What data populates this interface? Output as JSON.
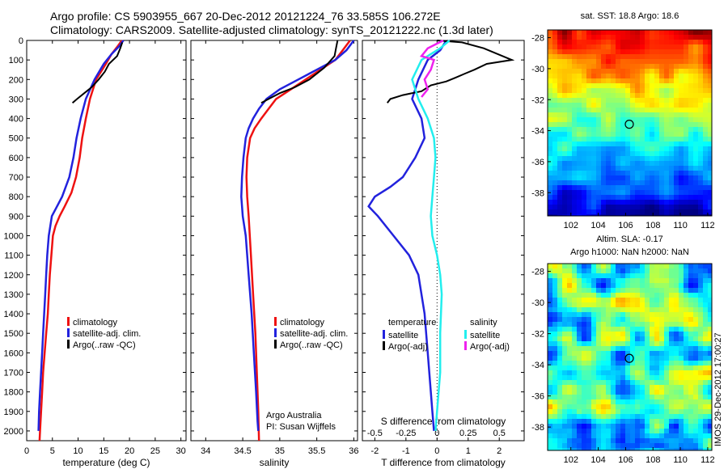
{
  "header": {
    "line1": "Argo profile: CS 5903955_667 20-Dec-2012 20121224_76 33.585S 106.272E",
    "line2": "Climatology: CARS2009. Satellite-adjusted climatology: synTS_20121222.nc (1.3d later)"
  },
  "side_stamp": "IMOS 29-Dec-2012 17:00:27",
  "colors": {
    "climatology": "#ee1111",
    "satellite": "#2222dd",
    "argo": "#000000",
    "sal_satellite": "#22eeee",
    "sal_argo": "#ee22ee"
  },
  "chart_data": [
    {
      "id": "temperature",
      "type": "line",
      "xlabel": "temperature (deg C)",
      "ylabel": "",
      "xlim": [
        0,
        31
      ],
      "ylim": [
        2050,
        0
      ],
      "xticks": [
        0,
        5,
        10,
        15,
        20,
        25,
        30
      ],
      "yticks": [
        0,
        100,
        200,
        300,
        400,
        500,
        600,
        700,
        800,
        900,
        1000,
        1100,
        1200,
        1300,
        1400,
        1500,
        1600,
        1700,
        1800,
        1900,
        2000
      ],
      "legend": [
        "climatology",
        "satellite-adj. clim.",
        "Argo(..raw -QC)"
      ],
      "annotations": [],
      "series": [
        {
          "name": "climatology",
          "color": "#ee1111",
          "x": [
            18.5,
            17.7,
            16.5,
            15.4,
            13.5,
            12.3,
            11.5,
            10.8,
            10.3,
            9.6,
            8.7,
            7.4,
            6.4,
            5.6,
            5.1,
            4.8,
            4.5,
            4.3,
            4.1,
            3.8,
            3.5,
            3.2,
            3.0,
            2.8,
            2.6,
            2.5
          ],
          "y": [
            0,
            30,
            70,
            120,
            200,
            300,
            400,
            500,
            600,
            700,
            780,
            850,
            900,
            950,
            1000,
            1100,
            1200,
            1300,
            1400,
            1500,
            1600,
            1700,
            1800,
            1900,
            2000,
            2050
          ]
        },
        {
          "name": "satellite-adj. clim.",
          "color": "#2222dd",
          "x": [
            18.8,
            18.0,
            16.5,
            15.0,
            13.2,
            11.5,
            10.5,
            9.7,
            9.1,
            8.3,
            6.9,
            5.7,
            4.9,
            4.6,
            4.3,
            4.0,
            3.8,
            3.6,
            3.4,
            3.2,
            3.0,
            2.8,
            2.6,
            2.4,
            2.3
          ],
          "y": [
            0,
            30,
            70,
            120,
            200,
            300,
            400,
            500,
            600,
            700,
            800,
            860,
            900,
            950,
            1000,
            1100,
            1200,
            1300,
            1400,
            1500,
            1600,
            1700,
            1800,
            1900,
            2000
          ]
        },
        {
          "name": "Argo(..raw -QC)",
          "color": "#000000",
          "x": [
            18.6,
            18.2,
            17.6,
            16.0,
            15.2,
            14.0,
            12.6,
            11.2,
            9.8,
            8.9
          ],
          "y": [
            10,
            40,
            80,
            120,
            160,
            200,
            240,
            270,
            300,
            320
          ]
        }
      ]
    },
    {
      "id": "salinity",
      "type": "line",
      "xlabel": "salinity",
      "ylabel": "",
      "xlim": [
        33.8,
        36.05
      ],
      "ylim": [
        2050,
        0
      ],
      "xticks": [
        34,
        34.5,
        35,
        35.5,
        36
      ],
      "legend": [
        "climatology",
        "satellite-adj. clim.",
        "Argo(..raw -QC)"
      ],
      "annotations": [
        "Argo Australia",
        "PI: Susan Wijffels"
      ],
      "series": [
        {
          "name": "climatology",
          "color": "#ee1111",
          "x": [
            35.95,
            35.85,
            35.75,
            35.55,
            35.35,
            35.15,
            34.95,
            34.85,
            34.75,
            34.66,
            34.6,
            34.56,
            34.55,
            34.56,
            34.58,
            34.61,
            34.64,
            34.67,
            34.69,
            34.71,
            34.72
          ],
          "y": [
            0,
            50,
            100,
            150,
            200,
            250,
            300,
            350,
            400,
            450,
            500,
            600,
            700,
            800,
            900,
            1100,
            1300,
            1500,
            1700,
            1900,
            2050
          ]
        },
        {
          "name": "satellite-adj. clim.",
          "color": "#2222dd",
          "x": [
            36.0,
            35.9,
            35.75,
            35.5,
            35.25,
            35.0,
            34.82,
            34.72,
            34.64,
            34.58,
            34.54,
            34.51,
            34.49,
            34.48,
            34.5,
            34.54,
            34.58,
            34.62,
            34.65,
            34.68,
            34.7,
            34.71
          ],
          "y": [
            0,
            50,
            100,
            150,
            200,
            250,
            300,
            350,
            400,
            450,
            500,
            600,
            700,
            800,
            900,
            1000,
            1200,
            1400,
            1600,
            1800,
            1950,
            2000
          ]
        },
        {
          "name": "Argo(..raw -QC)",
          "color": "#000000",
          "x": [
            35.78,
            35.76,
            35.74,
            35.6,
            35.4,
            35.2,
            35.0,
            34.85,
            34.75
          ],
          "y": [
            0,
            40,
            80,
            140,
            200,
            240,
            270,
            300,
            320
          ]
        }
      ]
    },
    {
      "id": "difference",
      "type": "line",
      "xlabel": "T difference from climatology",
      "top_label": "S difference from climatology",
      "xlim": [
        -2.4,
        2.8
      ],
      "ylim": [
        2050,
        0
      ],
      "xticks": [
        -2,
        -1,
        0,
        1,
        2
      ],
      "s_xticks": [
        "-0.5",
        "-0.25",
        "0",
        "0.25",
        "0.5"
      ],
      "legend_headers": [
        "temperature",
        "salinity"
      ],
      "legend": [
        "satellite",
        "Argo(-adj)",
        "satellite",
        "Argo(-adj)"
      ],
      "series": [
        {
          "name": "satellite",
          "group": "temperature",
          "color": "#2222dd",
          "x": [
            0.3,
            0.1,
            -0.3,
            -0.6,
            -0.8,
            -0.5,
            -0.4,
            -0.7,
            -1.1,
            -1.5,
            -2.0,
            -2.2,
            -1.9,
            -1.4,
            -0.9,
            -0.6,
            -0.4,
            -0.3,
            -0.2,
            -0.15,
            -0.1
          ],
          "y": [
            0,
            50,
            100,
            200,
            300,
            400,
            500,
            600,
            700,
            750,
            800,
            850,
            900,
            1000,
            1100,
            1200,
            1400,
            1600,
            1800,
            1900,
            2000
          ]
        },
        {
          "name": "Argo(-adj)",
          "group": "temperature",
          "color": "#000000",
          "x": [
            0.0,
            0.8,
            1.5,
            2.4,
            1.6,
            1.2,
            0.9,
            0.6,
            0.3,
            -0.2,
            -0.5,
            -1.1,
            -1.5,
            -1.6
          ],
          "y": [
            0,
            10,
            40,
            100,
            120,
            150,
            170,
            190,
            210,
            230,
            260,
            280,
            300,
            320
          ]
        },
        {
          "name": "satellite",
          "group": "salinity",
          "color": "#22eeee",
          "x": [
            0.4,
            0.1,
            -0.5,
            -0.8,
            -0.6,
            -0.3,
            -0.1,
            -0.05,
            -0.1,
            -0.15,
            -0.2,
            -0.15,
            0.0,
            0.1,
            0.15,
            0.1,
            0.1,
            0.0,
            -0.05
          ],
          "y": [
            0,
            40,
            100,
            200,
            300,
            400,
            500,
            600,
            700,
            800,
            900,
            1000,
            1100,
            1200,
            1300,
            1500,
            1700,
            1900,
            2000
          ]
        },
        {
          "name": "Argo(-adj)",
          "group": "salinity",
          "color": "#ee22ee",
          "x": [
            0.2,
            -0.3,
            -0.5,
            -0.1,
            -0.2,
            -0.4,
            -0.3,
            -0.5
          ],
          "y": [
            0,
            40,
            80,
            100,
            150,
            200,
            250,
            290
          ]
        }
      ]
    }
  ],
  "maps": [
    {
      "title": "sat. SST: 18.8  Argo: 18.6",
      "subtitle": "",
      "xticks": [
        "102",
        "104",
        "106",
        "108",
        "110",
        "112"
      ],
      "yticks": [
        "-28",
        "-30",
        "-32",
        "-34",
        "-36",
        "-38"
      ],
      "lon_range": [
        100.3,
        112.3
      ],
      "lat_range": [
        -39.5,
        -27.5
      ],
      "marker": {
        "lon": 106.27,
        "lat": -33.585
      }
    },
    {
      "title": "Altim. SLA: -0.17",
      "subtitle": "Argo h1000: NaN h2000: NaN",
      "xticks": [
        "102",
        "104",
        "106",
        "108",
        "110",
        "112"
      ],
      "yticks": [
        "-28",
        "-30",
        "-32",
        "-34",
        "-36",
        "-38"
      ],
      "lon_range": [
        100.3,
        112.3
      ],
      "lat_range": [
        -39.5,
        -27.5
      ],
      "marker": {
        "lon": 106.27,
        "lat": -33.585
      }
    }
  ]
}
